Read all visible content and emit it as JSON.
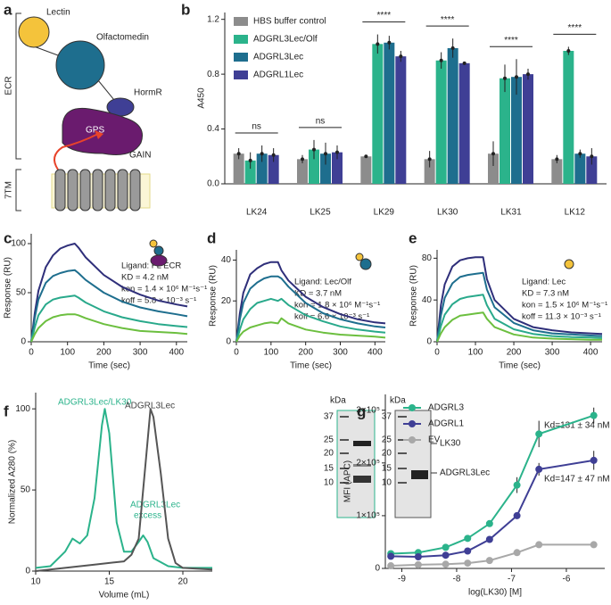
{
  "panel_labels": [
    "a",
    "b",
    "c",
    "d",
    "e",
    "f",
    "g"
  ],
  "diagram": {
    "domains": [
      "Lectin",
      "Olfactomedin",
      "HormR",
      "GAIN"
    ],
    "site": "GPS",
    "regions": [
      "ECR",
      "7TM"
    ]
  },
  "gel": {
    "unit": "kDa",
    "markers": [
      "37",
      "25",
      "20",
      "15",
      "10"
    ],
    "bands": [
      "LK30",
      "ADGRL3Lec"
    ]
  },
  "chart_data": [
    {
      "type": "bar",
      "ylabel": "A450",
      "categories": [
        "LK24",
        "LK25",
        "LK29",
        "LK30",
        "LK31",
        "LK12"
      ],
      "significance": [
        "ns",
        "ns",
        "****",
        "****",
        "****",
        "****"
      ],
      "ylim": [
        0,
        1.25
      ],
      "yticks": [
        {
          "value": 0,
          "label": "0.0"
        },
        0.4,
        0.8,
        1.2
      ],
      "series": [
        {
          "name": "HBS buffer control",
          "color": "#8c8c8c",
          "values": [
            0.22,
            0.18,
            0.2,
            0.18,
            0.22,
            0.18
          ],
          "errors": [
            0.04,
            0.03,
            0.01,
            0.06,
            0.09,
            0.03
          ]
        },
        {
          "name": "ADGRL3Lec/Olf",
          "color": "#2bb38b",
          "values": [
            0.17,
            0.25,
            1.02,
            0.9,
            0.77,
            0.97
          ],
          "errors": [
            0.06,
            0.07,
            0.07,
            0.06,
            0.1,
            0.03
          ]
        },
        {
          "name": "ADGRL3Lec",
          "color": "#1e6e8e",
          "values": [
            0.22,
            0.22,
            1.03,
            0.99,
            0.78,
            0.22
          ],
          "errors": [
            0.06,
            0.08,
            0.05,
            0.07,
            0.13,
            0.03
          ]
        },
        {
          "name": "ADGRL1Lec",
          "color": "#3f3f95",
          "values": [
            0.21,
            0.23,
            0.93,
            0.88,
            0.8,
            0.2
          ],
          "errors": [
            0.05,
            0.05,
            0.04,
            0.01,
            0.04,
            0.06
          ]
        }
      ]
    },
    {
      "type": "line",
      "xlabel": "Time (sec)",
      "ylabel": "Response (RU)",
      "annotations": [
        "Ligand: FL ECR",
        "KD = 4.2 nM",
        "kon = 1.4 × 10⁶ M⁻¹s⁻¹",
        "koff = 5.8 × 10⁻³ s⁻¹"
      ],
      "xlim": [
        0,
        430
      ],
      "xticks": [
        0,
        100,
        200,
        300,
        400
      ],
      "ylim": [
        0,
        110
      ],
      "yticks": [
        0,
        50,
        100
      ],
      "x": [
        0,
        10,
        20,
        40,
        60,
        80,
        100,
        120,
        130,
        150,
        200,
        250,
        300,
        350,
        400,
        430
      ],
      "series": [
        {
          "color": "#2f2f7a",
          "values": [
            0,
            30,
            52,
            76,
            88,
            95,
            98,
            100,
            96,
            86,
            68,
            56,
            48,
            42,
            38,
            36
          ]
        },
        {
          "color": "#1e6e8e",
          "values": [
            0,
            25,
            43,
            60,
            67,
            70,
            72,
            73,
            70,
            63,
            50,
            41,
            35,
            31,
            28,
            26
          ]
        },
        {
          "color": "#29a98b",
          "values": [
            0,
            15,
            27,
            38,
            43,
            45,
            46,
            47,
            45,
            40,
            31,
            25,
            21,
            18,
            16,
            15
          ]
        },
        {
          "color": "#6cbf3f",
          "values": [
            0,
            8,
            14,
            21,
            25,
            27,
            28,
            28,
            27,
            24,
            18,
            14,
            11,
            10,
            9,
            8
          ]
        }
      ]
    },
    {
      "type": "line",
      "xlabel": "Time (sec)",
      "ylabel": "Response (RU)",
      "annotations": [
        "Ligand: Lec/Olf",
        "KD = 3.7 nM",
        "kon = 1.8 × 10⁶ M⁻¹s⁻¹",
        "koff = 6.6 × 10⁻³ s⁻¹"
      ],
      "xlim": [
        0,
        430
      ],
      "xticks": [
        0,
        100,
        200,
        300,
        400
      ],
      "ylim": [
        0,
        45
      ],
      "yticks": [
        0,
        20,
        40
      ],
      "x": [
        0,
        10,
        20,
        40,
        60,
        80,
        100,
        120,
        130,
        150,
        200,
        250,
        300,
        350,
        400,
        430
      ],
      "series": [
        {
          "color": "#2f2f7a",
          "values": [
            0,
            14,
            24,
            33,
            36,
            38,
            39,
            39,
            35,
            30,
            22,
            17,
            13.5,
            11,
            9.5,
            9
          ]
        },
        {
          "color": "#1e6e8e",
          "values": [
            0,
            11,
            19,
            26,
            29,
            31,
            32,
            32,
            31,
            27,
            19,
            14,
            11,
            9,
            7.5,
            7
          ]
        },
        {
          "color": "#29a98b",
          "values": [
            0,
            6,
            11,
            16,
            19,
            20,
            21,
            20,
            21,
            18,
            13,
            10,
            7.5,
            6,
            5,
            4.5
          ]
        },
        {
          "color": "#6cbf3f",
          "values": [
            0,
            3,
            5,
            7,
            8,
            9,
            9.5,
            9,
            11.5,
            9,
            6,
            4.5,
            3.5,
            3,
            2.5,
            2
          ]
        }
      ]
    },
    {
      "type": "line",
      "xlabel": "Time (sec)",
      "ylabel": "Response (RU)",
      "annotations": [
        "Ligand: Lec",
        "KD = 7.3 nM",
        "kon = 1.5 × 10⁶ M⁻¹s⁻¹",
        "koff = 11.3 × 10⁻³ s⁻¹"
      ],
      "xlim": [
        0,
        430
      ],
      "xticks": [
        0,
        100,
        200,
        300,
        400
      ],
      "ylim": [
        0,
        88
      ],
      "yticks": [
        0,
        40,
        80
      ],
      "x": [
        0,
        10,
        20,
        40,
        60,
        80,
        100,
        120,
        130,
        150,
        200,
        250,
        300,
        350,
        400,
        430
      ],
      "series": [
        {
          "color": "#2f2f7a",
          "values": [
            0,
            35,
            55,
            72,
            78,
            80,
            81,
            81,
            60,
            40,
            22,
            14,
            11,
            9,
            8,
            7.5
          ]
        },
        {
          "color": "#1e6e8e",
          "values": [
            0,
            25,
            42,
            56,
            62,
            64,
            65,
            66,
            50,
            33,
            18,
            11,
            8,
            7,
            6,
            5.5
          ]
        },
        {
          "color": "#29a98b",
          "values": [
            0,
            15,
            26,
            36,
            41,
            43,
            44,
            45,
            35,
            22,
            12,
            7.5,
            5.5,
            4.5,
            4,
            3.5
          ]
        },
        {
          "color": "#6cbf3f",
          "values": [
            0,
            8,
            14,
            21,
            25,
            26,
            27,
            28,
            22,
            14,
            7,
            4,
            3,
            2.5,
            2,
            2
          ]
        }
      ]
    },
    {
      "type": "line",
      "xlabel": "Volume (mL)",
      "ylabel": "Normalized A280 (%)",
      "annotations": [
        "ADGRL3Lec/LK30",
        "ADGRL3Lec",
        "ADGRL3Lec",
        "excess"
      ],
      "xlim": [
        10,
        22
      ],
      "xticks": [
        10,
        15,
        20
      ],
      "ylim": [
        0,
        110
      ],
      "yticks": [
        0,
        50,
        100
      ],
      "series": [
        {
          "color": "#2bb38b",
          "x": [
            10,
            11,
            12,
            12.5,
            13,
            13.5,
            14,
            14.5,
            14.7,
            15,
            15.5,
            16,
            16.5,
            17,
            17.3,
            17.6,
            18,
            19,
            20,
            22
          ],
          "values": [
            2,
            3,
            12,
            20,
            17,
            22,
            45,
            90,
            100,
            85,
            30,
            12,
            12,
            18,
            22,
            18,
            8,
            3,
            2,
            2
          ]
        },
        {
          "color": "#555555",
          "x": [
            10,
            12,
            14,
            16,
            16.5,
            17,
            17.5,
            17.8,
            18,
            18.5,
            19,
            19.5,
            20,
            22
          ],
          "values": [
            0,
            2,
            4,
            6,
            10,
            20,
            70,
            100,
            95,
            60,
            20,
            5,
            2,
            1
          ]
        }
      ]
    },
    {
      "type": "scatter",
      "xlabel": "log(LK30) [M]",
      "ylabel": "MFI (APC)",
      "annotations": [
        "Kd=131 ± 34 nM",
        "Kd=147 ± 47 nM"
      ],
      "xlim": [
        -9.3,
        -5.3
      ],
      "xticks": [
        -9,
        -8,
        -7,
        -6
      ],
      "ylim": [
        0,
        330000
      ],
      "yticks": [
        0,
        {
          "value": 100000,
          "label": "1×10⁵"
        },
        {
          "value": 200000,
          "label": "2×10⁵"
        },
        {
          "value": 300000,
          "label": "3×10⁵"
        }
      ],
      "x": [
        -9.2,
        -8.7,
        -8.2,
        -7.8,
        -7.4,
        -6.9,
        -6.5,
        -5.5
      ],
      "series": [
        {
          "name": "ADGRL3",
          "color": "#2bb38b",
          "values": [
            28000,
            30000,
            40000,
            57000,
            85000,
            158000,
            255000,
            290000
          ],
          "errors": [
            2000,
            2000,
            2000,
            5000,
            4000,
            15000,
            25000,
            15000
          ]
        },
        {
          "name": "ADGRL1",
          "color": "#3f3f95",
          "values": [
            23000,
            22000,
            25000,
            33000,
            55000,
            100000,
            188000,
            205000
          ],
          "errors": [
            2000,
            2000,
            2000,
            2000,
            3000,
            5000,
            12000,
            18000
          ]
        },
        {
          "name": "EV",
          "color": "#a8a8a8",
          "values": [
            5000,
            7000,
            8000,
            10000,
            15000,
            30000,
            45000,
            45000
          ],
          "errors": [
            1000,
            1000,
            1000,
            1000,
            1000,
            2000,
            3000,
            3000
          ]
        }
      ]
    }
  ]
}
